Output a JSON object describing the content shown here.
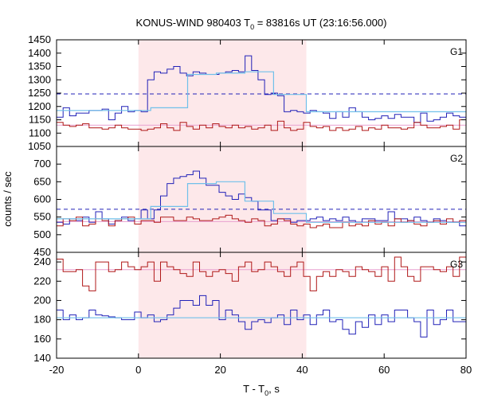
{
  "chart_data": {
    "type": "line",
    "title": "KONUS-WIND 980403 T",
    "title_sub": "0",
    "title_rest": " = 83816s UT (23:16:56.000)",
    "xlabel": "T - T",
    "xlabel_sub": "0",
    "xlabel_rest": ", s",
    "ylabel": "counts / sec",
    "xlim": [
      -20,
      80
    ],
    "x_ticks": [
      -20,
      0,
      20,
      40,
      60,
      80
    ],
    "highlight_interval": [
      0,
      41
    ],
    "colors": {
      "count_g": "#2222b8",
      "count_r": "#b01818",
      "fit": "#70c0ea",
      "bg": "#e8a0d0",
      "dashed": "#2222b8",
      "shade": "#fde8ea"
    },
    "panels": [
      {
        "label": "G1",
        "ylim": [
          1050,
          1450
        ],
        "y_ticks": [
          1050,
          1100,
          1150,
          1200,
          1250,
          1300,
          1350,
          1400,
          1450
        ],
        "threshold": 1247,
        "background_level": 1130,
        "series": [
          {
            "color_key": "count_g",
            "y": [
              1160,
              1195,
              1165,
              1175,
              1175,
              1185,
              1185,
              1190,
              1150,
              1175,
              1200,
              1180,
              1185,
              1180,
              1300,
              1330,
              1325,
              1340,
              1350,
              1325,
              1315,
              1330,
              1325,
              1320,
              1320,
              1325,
              1330,
              1335,
              1330,
              1390,
              1335,
              1300,
              1245,
              1250,
              1240,
              1180,
              1185,
              1180,
              1175,
              1185,
              1180,
              1175,
              1155,
              1180,
              1160,
              1195,
              1180,
              1160,
              1150,
              1155,
              1165,
              1155,
              1170,
              1160,
              1160,
              1140,
              1175,
              1145,
              1150,
              1160,
              1175,
              1165,
              1160
            ]
          },
          {
            "color_key": "count_r",
            "y": [
              1140,
              1130,
              1125,
              1130,
              1135,
              1120,
              1120,
              1115,
              1120,
              1130,
              1120,
              1115,
              1115,
              1110,
              1115,
              1120,
              1135,
              1120,
              1110,
              1140,
              1125,
              1115,
              1130,
              1120,
              1135,
              1125,
              1120,
              1130,
              1120,
              1125,
              1115,
              1120,
              1130,
              1110,
              1145,
              1120,
              1110,
              1115,
              1140,
              1125,
              1120,
              1125,
              1110,
              1120,
              1110,
              1115,
              1125,
              1110,
              1120,
              1115,
              1130,
              1120,
              1120,
              1115,
              1120,
              1140,
              1130,
              1120,
              1120,
              1125,
              1130,
              1115,
              1150
            ]
          },
          {
            "color_key": "fit",
            "steps": [
              [
                -20,
                3,
                1185
              ],
              [
                3,
                12,
                1195
              ],
              [
                12,
                19,
                1320
              ],
              [
                19,
                26,
                1325
              ],
              [
                26,
                33,
                1330
              ],
              [
                33,
                41,
                1245
              ],
              [
                41,
                80,
                1180
              ]
            ]
          }
        ]
      },
      {
        "label": "G2",
        "ylim": [
          450,
          750
        ],
        "y_ticks": [
          450,
          500,
          550,
          600,
          650,
          700
        ],
        "threshold": 572,
        "background_level": 537,
        "series": [
          {
            "color_key": "count_g",
            "y": [
              535,
              530,
              545,
              540,
              550,
              535,
              565,
              545,
              530,
              540,
              550,
              540,
              545,
              570,
              545,
              570,
              610,
              645,
              660,
              665,
              670,
              680,
              660,
              640,
              640,
              620,
              610,
              600,
              615,
              605,
              595,
              570,
              570,
              540,
              545,
              545,
              535,
              540,
              540,
              545,
              550,
              540,
              545,
              540,
              550,
              540,
              535,
              545,
              545,
              540,
              540,
              565,
              545,
              545,
              540,
              550,
              540,
              535,
              545,
              540,
              535,
              535,
              525
            ]
          },
          {
            "color_key": "count_r",
            "y": [
              525,
              545,
              540,
              550,
              525,
              530,
              545,
              540,
              525,
              540,
              545,
              550,
              530,
              540,
              540,
              535,
              550,
              550,
              540,
              540,
              550,
              545,
              540,
              540,
              545,
              550,
              555,
              545,
              540,
              535,
              545,
              540,
              525,
              530,
              545,
              540,
              530,
              525,
              530,
              520,
              525,
              530,
              520,
              520,
              535,
              525,
              530,
              525,
              540,
              530,
              535,
              525,
              545,
              535,
              540,
              530,
              525,
              535,
              540,
              530,
              545,
              535,
              540
            ]
          },
          {
            "color_key": "fit",
            "steps": [
              [
                -20,
                3,
                545
              ],
              [
                3,
                12,
                580
              ],
              [
                12,
                19,
                645
              ],
              [
                19,
                26,
                650
              ],
              [
                26,
                33,
                595
              ],
              [
                33,
                41,
                560
              ],
              [
                41,
                80,
                535
              ]
            ]
          }
        ]
      },
      {
        "label": "G3",
        "ylim": [
          140,
          250
        ],
        "y_ticks": [
          140,
          160,
          180,
          200,
          220,
          240
        ],
        "threshold": null,
        "background_level": 232,
        "series": [
          {
            "color_key": "count_g",
            "y": [
              190,
              180,
              185,
              180,
              182,
              190,
              185,
              184,
              183,
              182,
              180,
              180,
              188,
              182,
              185,
              178,
              180,
              185,
              192,
              200,
              200,
              195,
              205,
              195,
              200,
              180,
              190,
              185,
              178,
              170,
              178,
              180,
              177,
              182,
              185,
              175,
              190,
              180,
              185,
              175,
              185,
              190,
              178,
              180,
              170,
              165,
              178,
              172,
              185,
              175,
              185,
              178,
              190,
              190,
              182,
              178,
              162,
              190,
              175,
              180,
              190,
              178,
              178
            ]
          },
          {
            "color_key": "count_r",
            "y": [
              243,
              230,
              230,
              232,
              215,
              210,
              240,
              240,
              230,
              232,
              240,
              235,
              232,
              235,
              240,
              220,
              240,
              235,
              232,
              228,
              225,
              240,
              230,
              225,
              230,
              232,
              228,
              220,
              235,
              240,
              230,
              232,
              240,
              235,
              230,
              225,
              235,
              240,
              225,
              210,
              225,
              230,
              225,
              232,
              230,
              225,
              235,
              232,
              230,
              225,
              235,
              220,
              245,
              235,
              225,
              220,
              235,
              235,
              232,
              230,
              235,
              225,
              245
            ]
          },
          {
            "color_key": "fit",
            "steps": [
              [
                -20,
                80,
                182
              ]
            ]
          }
        ]
      }
    ]
  }
}
